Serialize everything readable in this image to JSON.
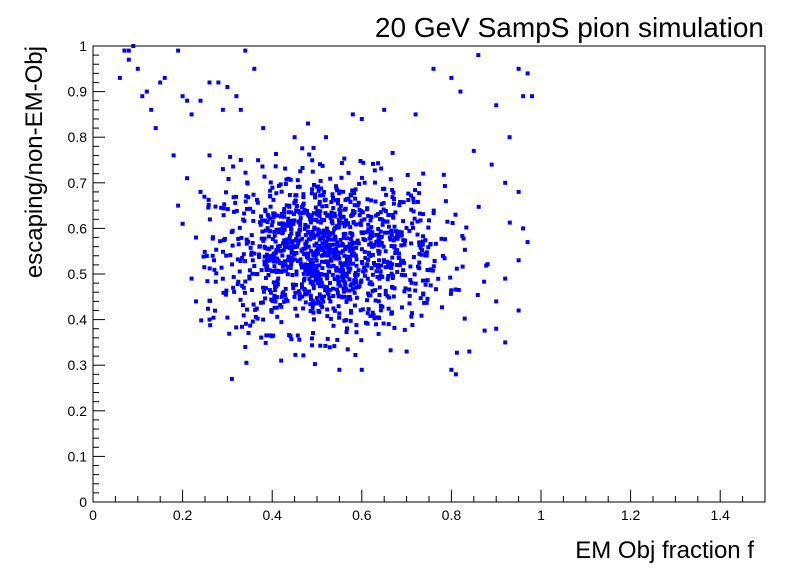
{
  "chart_data": {
    "type": "scatter",
    "title": "20 GeV SampS pion simulation",
    "xlabel": "EM Obj fraction f",
    "ylabel": "escaping/non-EM-Obj",
    "xlim": [
      0,
      1.5
    ],
    "ylim": [
      0,
      1
    ],
    "x_ticks": [
      "0",
      "0.2",
      "0.4",
      "0.6",
      "0.8",
      "1",
      "1.2",
      "1.4"
    ],
    "y_ticks": [
      "0",
      "0.1",
      "0.2",
      "0.3",
      "0.4",
      "0.5",
      "0.6",
      "0.7",
      "0.8",
      "0.9",
      "1"
    ],
    "grid": false,
    "marker_color": "#0000ff",
    "series": [
      {
        "points": [
          [
            0.06,
            0.93
          ],
          [
            0.07,
            0.99
          ],
          [
            0.08,
            0.99
          ],
          [
            0.09,
            1.0
          ],
          [
            0.08,
            0.97
          ],
          [
            0.1,
            0.95
          ],
          [
            0.11,
            0.89
          ],
          [
            0.12,
            0.9
          ],
          [
            0.13,
            0.86
          ],
          [
            0.14,
            0.82
          ],
          [
            0.15,
            0.92
          ],
          [
            0.16,
            0.93
          ],
          [
            0.18,
            0.76
          ],
          [
            0.19,
            0.99
          ],
          [
            0.2,
            0.89
          ],
          [
            0.21,
            0.88
          ],
          [
            0.22,
            0.85
          ],
          [
            0.24,
            0.88
          ],
          [
            0.26,
            0.92
          ],
          [
            0.28,
            0.92
          ],
          [
            0.29,
            0.86
          ],
          [
            0.3,
            0.91
          ],
          [
            0.32,
            0.89
          ],
          [
            0.33,
            0.86
          ],
          [
            0.34,
            0.99
          ],
          [
            0.36,
            0.95
          ],
          [
            0.38,
            0.82
          ],
          [
            0.45,
            0.8
          ],
          [
            0.48,
            0.83
          ],
          [
            0.52,
            0.8
          ],
          [
            0.58,
            0.85
          ],
          [
            0.6,
            0.84
          ],
          [
            0.65,
            0.86
          ],
          [
            0.72,
            0.85
          ],
          [
            0.76,
            0.95
          ],
          [
            0.8,
            0.93
          ],
          [
            0.82,
            0.9
          ],
          [
            0.86,
            0.98
          ],
          [
            0.9,
            0.87
          ],
          [
            0.95,
            0.95
          ],
          [
            0.97,
            0.94
          ],
          [
            0.96,
            0.89
          ],
          [
            0.98,
            0.89
          ],
          [
            0.93,
            0.8
          ],
          [
            0.85,
            0.77
          ],
          [
            0.89,
            0.74
          ],
          [
            0.92,
            0.7
          ],
          [
            0.95,
            0.68
          ],
          [
            0.96,
            0.6
          ],
          [
            0.97,
            0.57
          ],
          [
            0.95,
            0.53
          ],
          [
            0.92,
            0.49
          ],
          [
            0.9,
            0.44
          ],
          [
            0.9,
            0.38
          ],
          [
            0.92,
            0.35
          ],
          [
            0.95,
            0.42
          ],
          [
            0.8,
            0.29
          ],
          [
            0.81,
            0.28
          ],
          [
            0.31,
            0.27
          ],
          [
            0.34,
            0.34
          ],
          [
            0.42,
            0.31
          ],
          [
            0.55,
            0.29
          ],
          [
            0.6,
            0.29
          ],
          [
            0.7,
            0.33
          ],
          [
            0.84,
            0.33
          ],
          [
            0.26,
            0.4
          ],
          [
            0.23,
            0.44
          ],
          [
            0.22,
            0.49
          ],
          [
            0.27,
            0.53
          ],
          [
            0.23,
            0.58
          ],
          [
            0.2,
            0.61
          ],
          [
            0.19,
            0.65
          ],
          [
            0.21,
            0.71
          ],
          [
            0.24,
            0.68
          ],
          [
            0.26,
            0.76
          ],
          [
            0.29,
            0.73
          ],
          [
            0.33,
            0.75
          ]
        ]
      }
    ]
  }
}
